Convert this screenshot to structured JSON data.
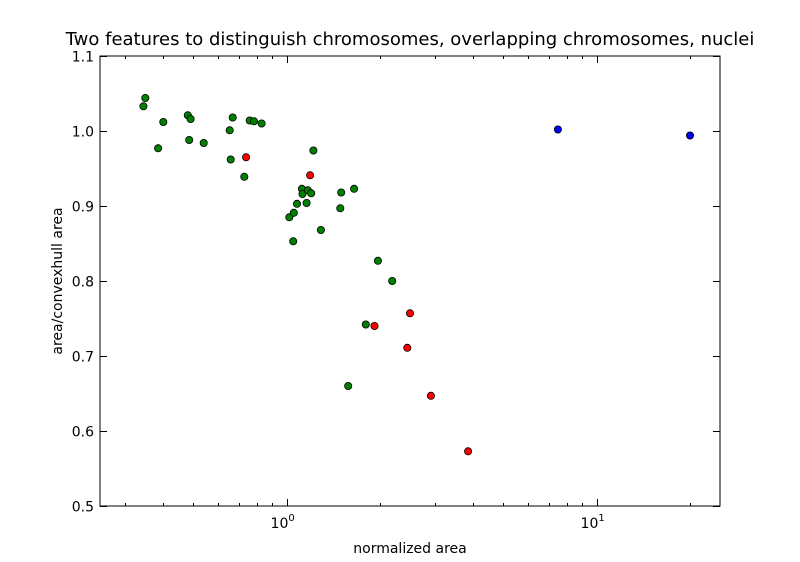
{
  "chart_data": {
    "type": "scatter",
    "title": "Two features to distinguish chromosomes, overlapping chromosomes, nuclei",
    "xlabel": "normalized area",
    "ylabel": "area/convexhull area",
    "xscale": "log",
    "xlim": [
      0.25,
      25
    ],
    "ylim": [
      0.5,
      1.1
    ],
    "xticks": [
      {
        "value": 1,
        "base": "10",
        "exp": "0"
      },
      {
        "value": 10,
        "base": "10",
        "exp": "1"
      }
    ],
    "yticks": [
      {
        "value": 0.5,
        "label": "0.5"
      },
      {
        "value": 0.6,
        "label": "0.6"
      },
      {
        "value": 0.7,
        "label": "0.7"
      },
      {
        "value": 0.8,
        "label": "0.8"
      },
      {
        "value": 0.9,
        "label": "0.9"
      },
      {
        "value": 1.0,
        "label": "1.0"
      },
      {
        "value": 1.1,
        "label": "1.1"
      }
    ],
    "grid": false,
    "series": [
      {
        "color": "#008000",
        "points": [
          [
            0.345,
            1.033
          ],
          [
            0.35,
            1.044
          ],
          [
            0.385,
            0.977
          ],
          [
            0.4,
            1.012
          ],
          [
            0.48,
            1.021
          ],
          [
            0.485,
            0.988
          ],
          [
            0.49,
            1.016
          ],
          [
            0.54,
            0.984
          ],
          [
            0.655,
            1.001
          ],
          [
            0.66,
            0.962
          ],
          [
            0.67,
            1.018
          ],
          [
            0.73,
            0.939
          ],
          [
            0.76,
            1.014
          ],
          [
            0.785,
            1.013
          ],
          [
            0.83,
            1.01
          ],
          [
            1.02,
            0.885
          ],
          [
            1.05,
            0.853
          ],
          [
            1.055,
            0.891
          ],
          [
            1.08,
            0.903
          ],
          [
            1.12,
            0.923
          ],
          [
            1.125,
            0.916
          ],
          [
            1.16,
            0.904
          ],
          [
            1.17,
            0.921
          ],
          [
            1.2,
            0.917
          ],
          [
            1.22,
            0.974
          ],
          [
            1.29,
            0.868
          ],
          [
            1.49,
            0.897
          ],
          [
            1.5,
            0.918
          ],
          [
            1.58,
            0.66
          ],
          [
            1.65,
            0.923
          ],
          [
            1.8,
            0.742
          ],
          [
            1.97,
            0.827
          ],
          [
            2.19,
            0.8
          ]
        ]
      },
      {
        "color": "#ff0000",
        "points": [
          [
            0.74,
            0.965
          ],
          [
            1.19,
            0.941
          ],
          [
            1.92,
            0.74
          ],
          [
            2.45,
            0.711
          ],
          [
            2.5,
            0.757
          ],
          [
            2.92,
            0.647
          ],
          [
            3.85,
            0.573
          ]
        ]
      },
      {
        "color": "#0000ff",
        "points": [
          [
            7.5,
            1.002
          ],
          [
            20.0,
            0.994
          ]
        ]
      }
    ]
  }
}
